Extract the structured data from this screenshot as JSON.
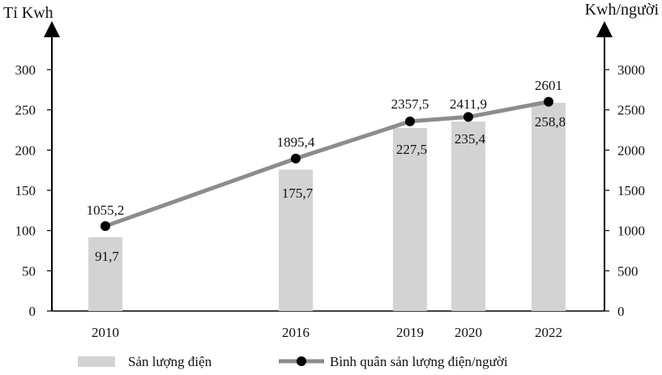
{
  "chart_data": {
    "type": "bar",
    "categories": [
      "2010",
      "2016",
      "2019",
      "2020",
      "2022"
    ],
    "series": [
      {
        "name": "Sản lượng điện",
        "type": "bar",
        "axis": "left",
        "values": [
          91.7,
          175.7,
          227.5,
          235.4,
          258.8
        ],
        "labels": [
          "91,7",
          "175,7",
          "227,5",
          "235,4",
          "258,8"
        ],
        "color": "#d3d3d3"
      },
      {
        "name": "Bình quân sản lượng điện/người",
        "type": "line",
        "axis": "right",
        "values": [
          1055.2,
          1895.4,
          2357.5,
          2411.9,
          2601
        ],
        "labels": [
          "1055,2",
          "1895,4",
          "2357,5",
          "2411,9",
          "2601"
        ],
        "color": "#8c8c8c",
        "marker_color": "#000000"
      }
    ],
    "y_left": {
      "label": "Tỉ Kwh",
      "ylim": [
        0,
        300
      ],
      "ticks": [
        "0",
        "50",
        "100",
        "150",
        "200",
        "250",
        "300"
      ]
    },
    "y_right": {
      "label": "Kwh/người",
      "ylim": [
        0,
        3000
      ],
      "ticks": [
        "0",
        "500",
        "1000",
        "1500",
        "2000",
        "2500",
        "3000"
      ]
    },
    "legend_position": "bottom",
    "grid": false
  }
}
